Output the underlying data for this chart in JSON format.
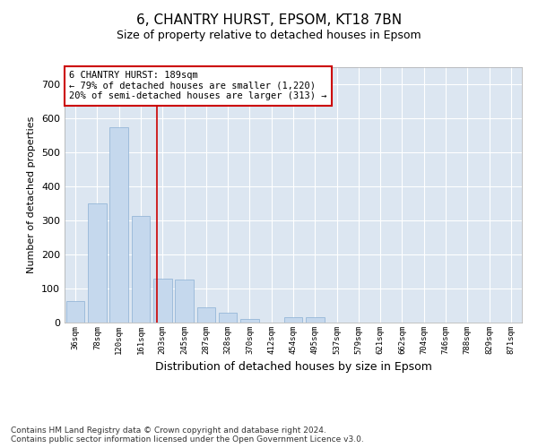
{
  "title": "6, CHANTRY HURST, EPSOM, KT18 7BN",
  "subtitle": "Size of property relative to detached houses in Epsom",
  "xlabel": "Distribution of detached houses by size in Epsom",
  "ylabel": "Number of detached properties",
  "bar_color": "#c5d8ed",
  "bar_edge_color": "#8ab0d4",
  "plot_bg_color": "#dce6f1",
  "grid_color": "#ffffff",
  "categories": [
    "36sqm",
    "78sqm",
    "120sqm",
    "161sqm",
    "203sqm",
    "245sqm",
    "287sqm",
    "328sqm",
    "370sqm",
    "412sqm",
    "454sqm",
    "495sqm",
    "537sqm",
    "579sqm",
    "621sqm",
    "662sqm",
    "704sqm",
    "746sqm",
    "788sqm",
    "829sqm",
    "871sqm"
  ],
  "values": [
    63,
    350,
    573,
    313,
    130,
    127,
    46,
    28,
    10,
    0,
    17,
    17,
    0,
    0,
    0,
    0,
    0,
    0,
    0,
    0,
    0
  ],
  "vline_x": 3.75,
  "annotation_text": "6 CHANTRY HURST: 189sqm\n← 79% of detached houses are smaller (1,220)\n20% of semi-detached houses are larger (313) →",
  "annotation_box_color": "#ffffff",
  "annotation_border_color": "#cc0000",
  "vline_color": "#cc0000",
  "footer": "Contains HM Land Registry data © Crown copyright and database right 2024.\nContains public sector information licensed under the Open Government Licence v3.0.",
  "ylim": [
    0,
    750
  ],
  "yticks": [
    0,
    100,
    200,
    300,
    400,
    500,
    600,
    700
  ]
}
